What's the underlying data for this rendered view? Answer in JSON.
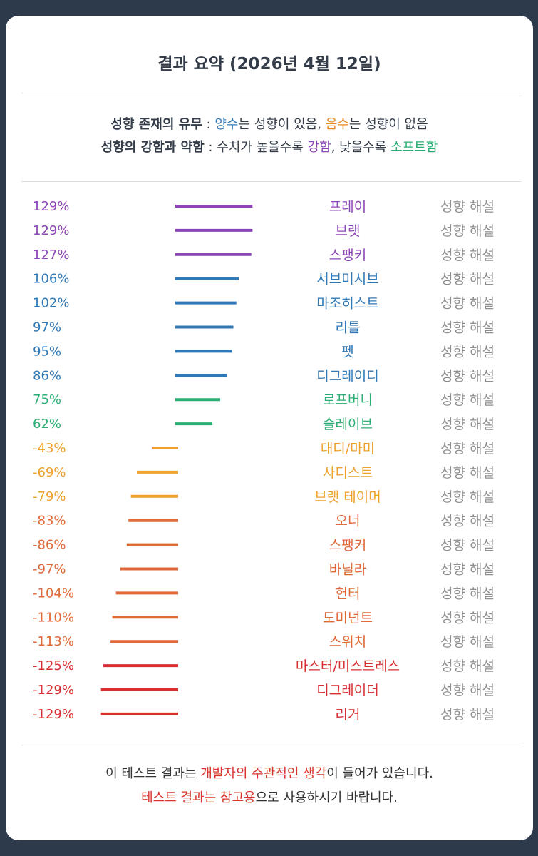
{
  "title": "결과 요약 (2026년 4월 12일)",
  "legend": {
    "line1": {
      "label": "성향 존재의 유무",
      "sep": " : ",
      "pos_word": "양수",
      "pos_rest": "는 성향이 있음, ",
      "neg_word": "음수",
      "neg_rest": "는 성향이 없음"
    },
    "line2": {
      "label": "성향의 강함과 약함",
      "sep": " : ",
      "part1": "수치가 높을수록 ",
      "strong_word": "강함",
      "part2": ", 낮을수록 ",
      "soft_word": "소프트함"
    }
  },
  "colors": {
    "purple": "#8c46b5",
    "blue": "#3079b6",
    "green": "#2bae73",
    "orange": "#eea12d",
    "darkorange": "#df6937",
    "red": "#d82f33"
  },
  "link_label": "성향 해설",
  "chart_data": {
    "type": "bar",
    "orientation": "horizontal",
    "unit": "%",
    "zero_line": true,
    "items": [
      {
        "label": "129%",
        "name": "프레이",
        "value": 129,
        "color": "purple"
      },
      {
        "label": "129%",
        "name": "브랫",
        "value": 129,
        "color": "purple"
      },
      {
        "label": "127%",
        "name": "스팽키",
        "value": 127,
        "color": "purple"
      },
      {
        "label": "106%",
        "name": "서브미시브",
        "value": 106,
        "color": "blue"
      },
      {
        "label": "102%",
        "name": "마조히스트",
        "value": 102,
        "color": "blue"
      },
      {
        "label": "97%",
        "name": "리틀",
        "value": 97,
        "color": "blue"
      },
      {
        "label": "95%",
        "name": "펫",
        "value": 95,
        "color": "blue"
      },
      {
        "label": "86%",
        "name": "디그레이디",
        "value": 86,
        "color": "blue"
      },
      {
        "label": "75%",
        "name": "로프버니",
        "value": 75,
        "color": "green"
      },
      {
        "label": "62%",
        "name": "슬레이브",
        "value": 62,
        "color": "green"
      },
      {
        "label": "-43%",
        "name": "대디/마미",
        "value": -43,
        "color": "orange"
      },
      {
        "label": "-69%",
        "name": "사디스트",
        "value": -69,
        "color": "orange"
      },
      {
        "label": "-79%",
        "name": "브랫 테이머",
        "value": -79,
        "color": "orange"
      },
      {
        "label": "-83%",
        "name": "오너",
        "value": -83,
        "color": "darkorange"
      },
      {
        "label": "-86%",
        "name": "스팽커",
        "value": -86,
        "color": "darkorange"
      },
      {
        "label": "-97%",
        "name": "바닐라",
        "value": -97,
        "color": "darkorange"
      },
      {
        "label": "-104%",
        "name": "헌터",
        "value": -104,
        "color": "darkorange"
      },
      {
        "label": "-110%",
        "name": "도미넌트",
        "value": -110,
        "color": "darkorange"
      },
      {
        "label": "-113%",
        "name": "스위치",
        "value": -113,
        "color": "darkorange"
      },
      {
        "label": "-125%",
        "name": "마스터/미스트레스",
        "value": -125,
        "color": "red"
      },
      {
        "label": "-129%",
        "name": "디그레이더",
        "value": -129,
        "color": "red"
      },
      {
        "label": "-129%",
        "name": "리거",
        "value": -129,
        "color": "red"
      }
    ]
  },
  "footer": {
    "line1_a": "이 테스트 결과는 ",
    "line1_hl": "개발자의 주관적인 생각",
    "line1_b": "이 들어가 있습니다.",
    "line2_hl": "테스트 결과는 참고용",
    "line2_b": "으로 사용하시기 바랍니다."
  }
}
